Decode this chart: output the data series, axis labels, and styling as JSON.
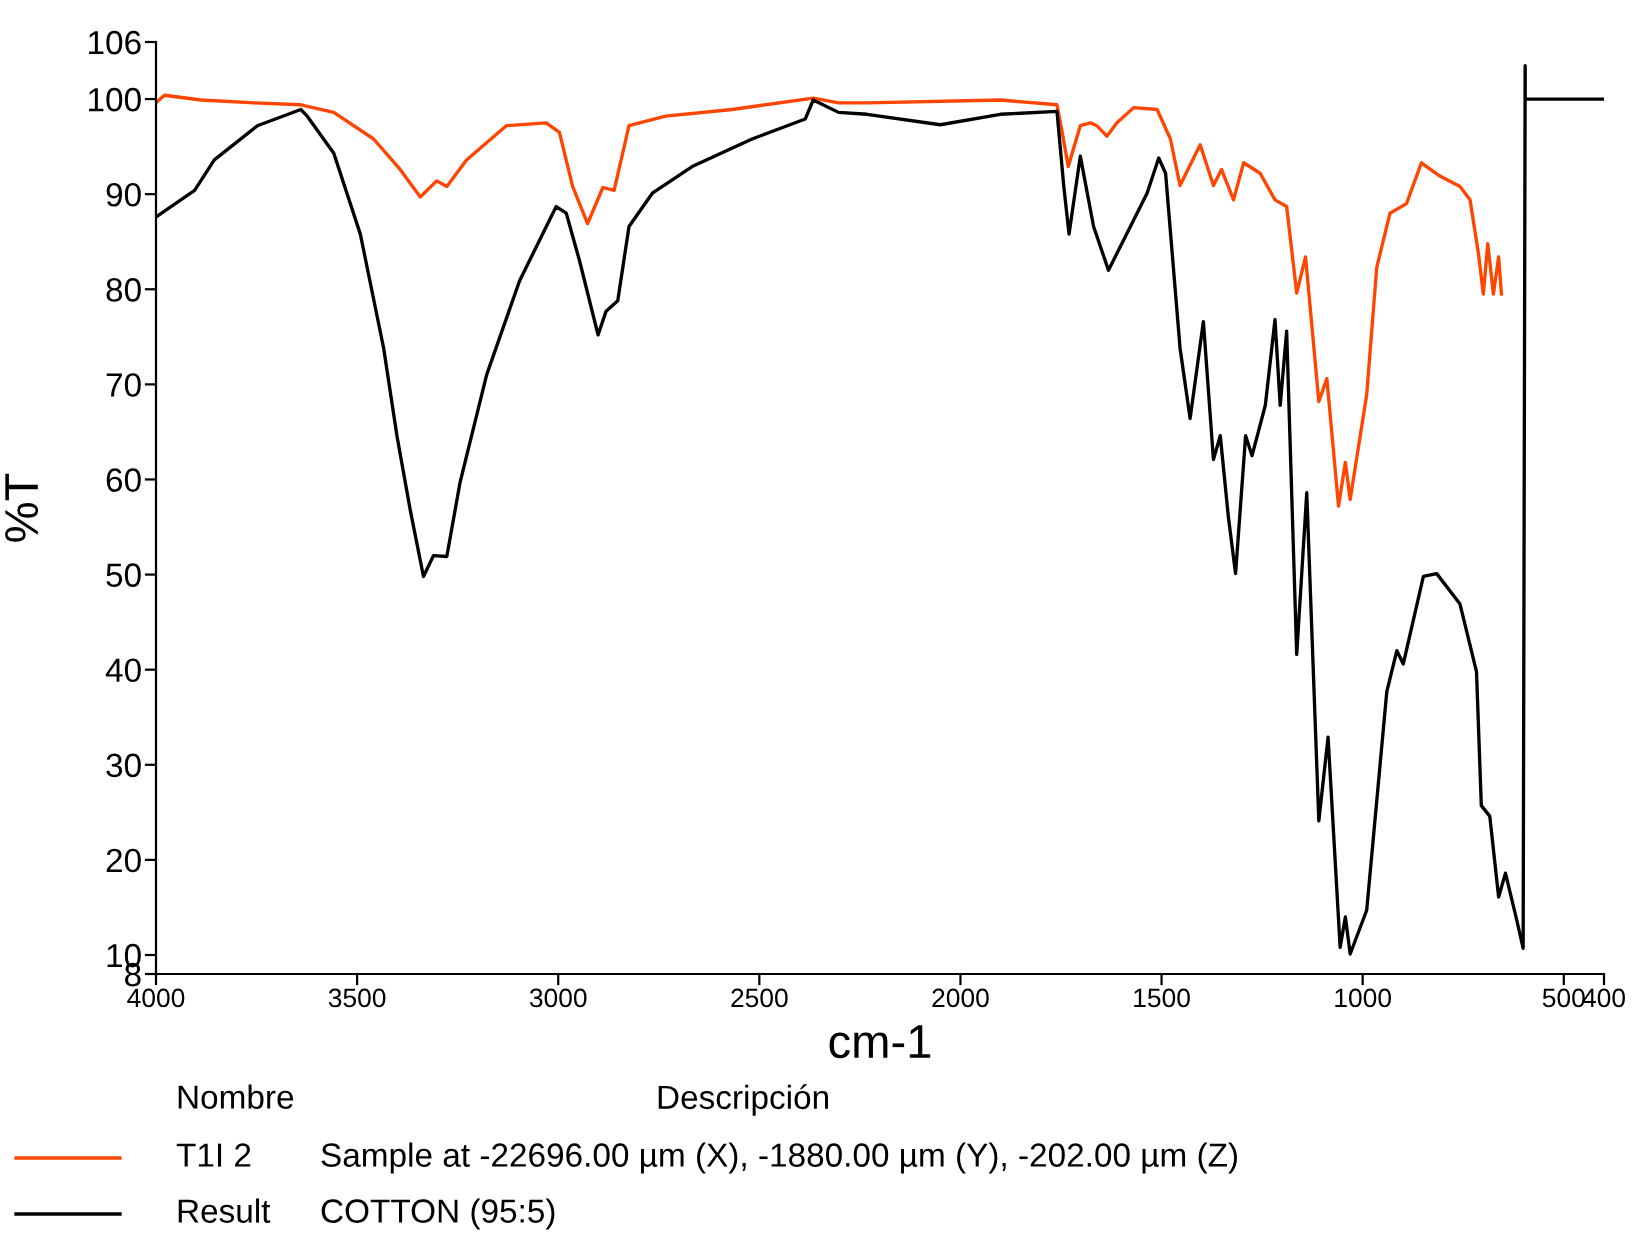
{
  "chart_data": {
    "type": "line",
    "xlabel": "cm-1",
    "ylabel": "%T",
    "xlim": [
      4000,
      400
    ],
    "xticks": [
      4000,
      3500,
      3000,
      2500,
      2000,
      1500,
      1000,
      500,
      400
    ],
    "ylim": [
      8,
      106
    ],
    "yticks": [
      8,
      10,
      20,
      30,
      40,
      50,
      60,
      70,
      80,
      90,
      100,
      106
    ],
    "grid": false,
    "legend": "bottom",
    "marker": "none",
    "line_style": "solid",
    "legend_title": "Nombre",
    "annotations": [
      "Descripción",
      "Sample at -22696.00 µm (X), -1880.00 µm (Y), -202.00 µm (Z)",
      "COTTON (95:5)"
    ],
    "series": [
      {
        "name": "T1I 2",
        "color": "#ff4500",
        "x": [
          4000,
          3979,
          3888,
          3756,
          3640,
          3558,
          3459,
          3393,
          3343,
          3302,
          3277,
          3228,
          3129,
          3030,
          2997,
          2964,
          2927,
          2889,
          2861,
          2824,
          2733,
          2568,
          2366,
          2303,
          2232,
          1901,
          1760,
          1747,
          1732,
          1702,
          1677,
          1661,
          1636,
          1611,
          1569,
          1511,
          1478,
          1454,
          1404,
          1371,
          1351,
          1321,
          1296,
          1255,
          1218,
          1189,
          1164,
          1142,
          1109,
          1089,
          1060,
          1043,
          1031,
          990,
          965,
          932,
          891,
          854,
          808,
          758,
          733,
          712,
          700,
          689,
          675,
          662,
          655
        ],
        "values": [
          99.6,
          100.4,
          99.9,
          99.6,
          99.4,
          98.6,
          95.8,
          92.6,
          89.7,
          91.4,
          90.8,
          93.6,
          97.2,
          97.5,
          96.5,
          90.8,
          86.9,
          90.7,
          90.4,
          97.2,
          98.2,
          98.9,
          100.1,
          99.6,
          99.6,
          99.9,
          99.4,
          96.5,
          92.9,
          97.2,
          97.5,
          97.2,
          96.1,
          97.5,
          99.1,
          98.9,
          95.8,
          90.9,
          95.2,
          90.9,
          92.6,
          89.4,
          93.3,
          92.2,
          89.4,
          88.7,
          79.6,
          83.4,
          68.2,
          70.6,
          57.2,
          61.8,
          57.9,
          68.9,
          82.3,
          88.0,
          89.0,
          93.3,
          91.9,
          90.8,
          89.4,
          83.7,
          79.5,
          84.8,
          79.5,
          83.4,
          79.5
        ]
      },
      {
        "name": "Result",
        "color": "#000000",
        "x": [
          4000,
          3904,
          3855,
          3748,
          3640,
          3624,
          3558,
          3492,
          3434,
          3401,
          3368,
          3335,
          3310,
          3277,
          3244,
          3178,
          3096,
          3005,
          2980,
          2947,
          2901,
          2881,
          2852,
          2824,
          2766,
          2667,
          2518,
          2386,
          2366,
          2303,
          2232,
          2050,
          1901,
          1760,
          1743,
          1730,
          1702,
          1669,
          1632,
          1569,
          1536,
          1507,
          1490,
          1454,
          1429,
          1396,
          1371,
          1354,
          1334,
          1316,
          1291,
          1275,
          1242,
          1218,
          1205,
          1189,
          1164,
          1139,
          1109,
          1086,
          1056,
          1043,
          1031,
          990,
          940,
          915,
          899,
          849,
          816,
          758,
          717,
          705,
          684,
          662,
          645,
          617,
          601,
          596,
          596,
          592,
          402
        ],
        "values": [
          87.6,
          90.4,
          93.6,
          97.2,
          98.9,
          98.2,
          94.3,
          85.8,
          73.8,
          64.6,
          56.8,
          49.8,
          52.0,
          51.9,
          59.7,
          71.0,
          80.9,
          88.7,
          88.0,
          83.0,
          75.2,
          77.7,
          78.8,
          86.6,
          90.1,
          92.9,
          95.8,
          97.9,
          99.9,
          98.6,
          98.4,
          97.3,
          98.4,
          98.7,
          90.8,
          85.8,
          94.0,
          86.6,
          82.0,
          87.3,
          90.1,
          93.8,
          92.2,
          73.8,
          66.4,
          76.6,
          62.1,
          64.6,
          56.1,
          50.1,
          64.6,
          62.5,
          67.8,
          76.8,
          67.8,
          75.6,
          41.6,
          58.6,
          24.1,
          32.9,
          10.8,
          14.0,
          10.1,
          14.7,
          37.7,
          42.0,
          40.6,
          49.8,
          50.1,
          46.9,
          39.8,
          25.7,
          24.6,
          16.1,
          18.6,
          13.7,
          10.7,
          103.5,
          100,
          100,
          100
        ]
      }
    ]
  }
}
